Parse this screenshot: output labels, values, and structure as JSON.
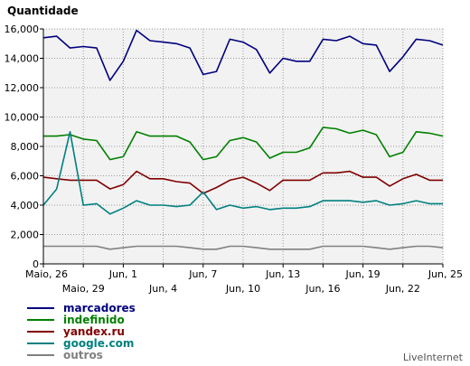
{
  "chart_data": {
    "type": "line",
    "ylabel": "Quantidade",
    "ylim": [
      0,
      16000
    ],
    "y_ticks": [
      0,
      2000,
      4000,
      6000,
      8000,
      10000,
      12000,
      14000,
      16000
    ],
    "y_tick_labels": [
      "0",
      "2,000",
      "4,000",
      "6,000",
      "8,000",
      "10,000",
      "12,000",
      "14,000",
      "16,000"
    ],
    "x": [
      "Maio, 26",
      "Maio, 27",
      "Maio, 28",
      "Maio, 29",
      "Maio, 30",
      "Maio, 31",
      "Jun, 1",
      "Jun, 2",
      "Jun, 3",
      "Jun, 4",
      "Jun, 5",
      "Jun, 6",
      "Jun, 7",
      "Jun, 8",
      "Jun, 9",
      "Jun, 10",
      "Jun, 11",
      "Jun, 12",
      "Jun, 13",
      "Jun, 14",
      "Jun, 15",
      "Jun, 16",
      "Jun, 17",
      "Jun, 18",
      "Jun, 19",
      "Jun, 20",
      "Jun, 21",
      "Jun, 22",
      "Jun, 23",
      "Jun, 24",
      "Jun, 25"
    ],
    "x_tick_labels": [
      {
        "index": 0,
        "label": "Maio, 26",
        "row": 1
      },
      {
        "index": 3,
        "label": "Maio, 29",
        "row": 2
      },
      {
        "index": 6,
        "label": "Jun, 1",
        "row": 1
      },
      {
        "index": 9,
        "label": "Jun, 4",
        "row": 2
      },
      {
        "index": 12,
        "label": "Jun, 7",
        "row": 1
      },
      {
        "index": 15,
        "label": "Jun, 10",
        "row": 2
      },
      {
        "index": 18,
        "label": "Jun, 13",
        "row": 1
      },
      {
        "index": 21,
        "label": "Jun, 16",
        "row": 2
      },
      {
        "index": 24,
        "label": "Jun, 19",
        "row": 1
      },
      {
        "index": 27,
        "label": "Jun, 22",
        "row": 2
      },
      {
        "index": 30,
        "label": "Jun, 25",
        "row": 1
      }
    ],
    "grid": true,
    "legend_position": "bottom-left",
    "series": [
      {
        "name": "marcadores",
        "color": "#000080",
        "values": [
          15400,
          15500,
          14700,
          14800,
          14700,
          12500,
          13800,
          15900,
          15200,
          15100,
          15000,
          14700,
          12900,
          13100,
          15300,
          15100,
          14600,
          13000,
          14000,
          13800,
          13800,
          15300,
          15200,
          15500,
          15000,
          14900,
          13100,
          14100,
          15300,
          15200,
          14900
        ]
      },
      {
        "name": "indefinido",
        "color": "#008000",
        "values": [
          8700,
          8700,
          8800,
          8500,
          8400,
          7100,
          7300,
          9000,
          8700,
          8700,
          8700,
          8300,
          7100,
          7300,
          8400,
          8600,
          8300,
          7200,
          7600,
          7600,
          7900,
          9300,
          9200,
          8900,
          9100,
          8800,
          7300,
          7600,
          9000,
          8900,
          8700
        ]
      },
      {
        "name": "yandex.ru",
        "color": "#800000",
        "values": [
          5900,
          5800,
          5700,
          5700,
          5700,
          5100,
          5400,
          6300,
          5800,
          5800,
          5600,
          5500,
          4800,
          5200,
          5700,
          5900,
          5500,
          5000,
          5700,
          5700,
          5700,
          6200,
          6200,
          6300,
          5900,
          5900,
          5300,
          5800,
          6100,
          5700,
          5700
        ]
      },
      {
        "name": "google.com",
        "color": "#008080",
        "values": [
          4000,
          5100,
          9000,
          4000,
          4100,
          3400,
          3800,
          4300,
          4000,
          4000,
          3900,
          4000,
          4900,
          3700,
          4000,
          3800,
          3900,
          3700,
          3800,
          3800,
          3900,
          4300,
          4300,
          4300,
          4200,
          4300,
          4000,
          4100,
          4300,
          4100,
          4100
        ]
      },
      {
        "name": "outros",
        "color": "#808080",
        "values": [
          1200,
          1200,
          1200,
          1200,
          1200,
          1000,
          1100,
          1200,
          1200,
          1200,
          1200,
          1100,
          1000,
          1000,
          1200,
          1200,
          1100,
          1000,
          1000,
          1000,
          1000,
          1200,
          1200,
          1200,
          1200,
          1100,
          1000,
          1100,
          1200,
          1200,
          1100
        ]
      }
    ]
  },
  "brand": {
    "label": "LiveInternet"
  }
}
